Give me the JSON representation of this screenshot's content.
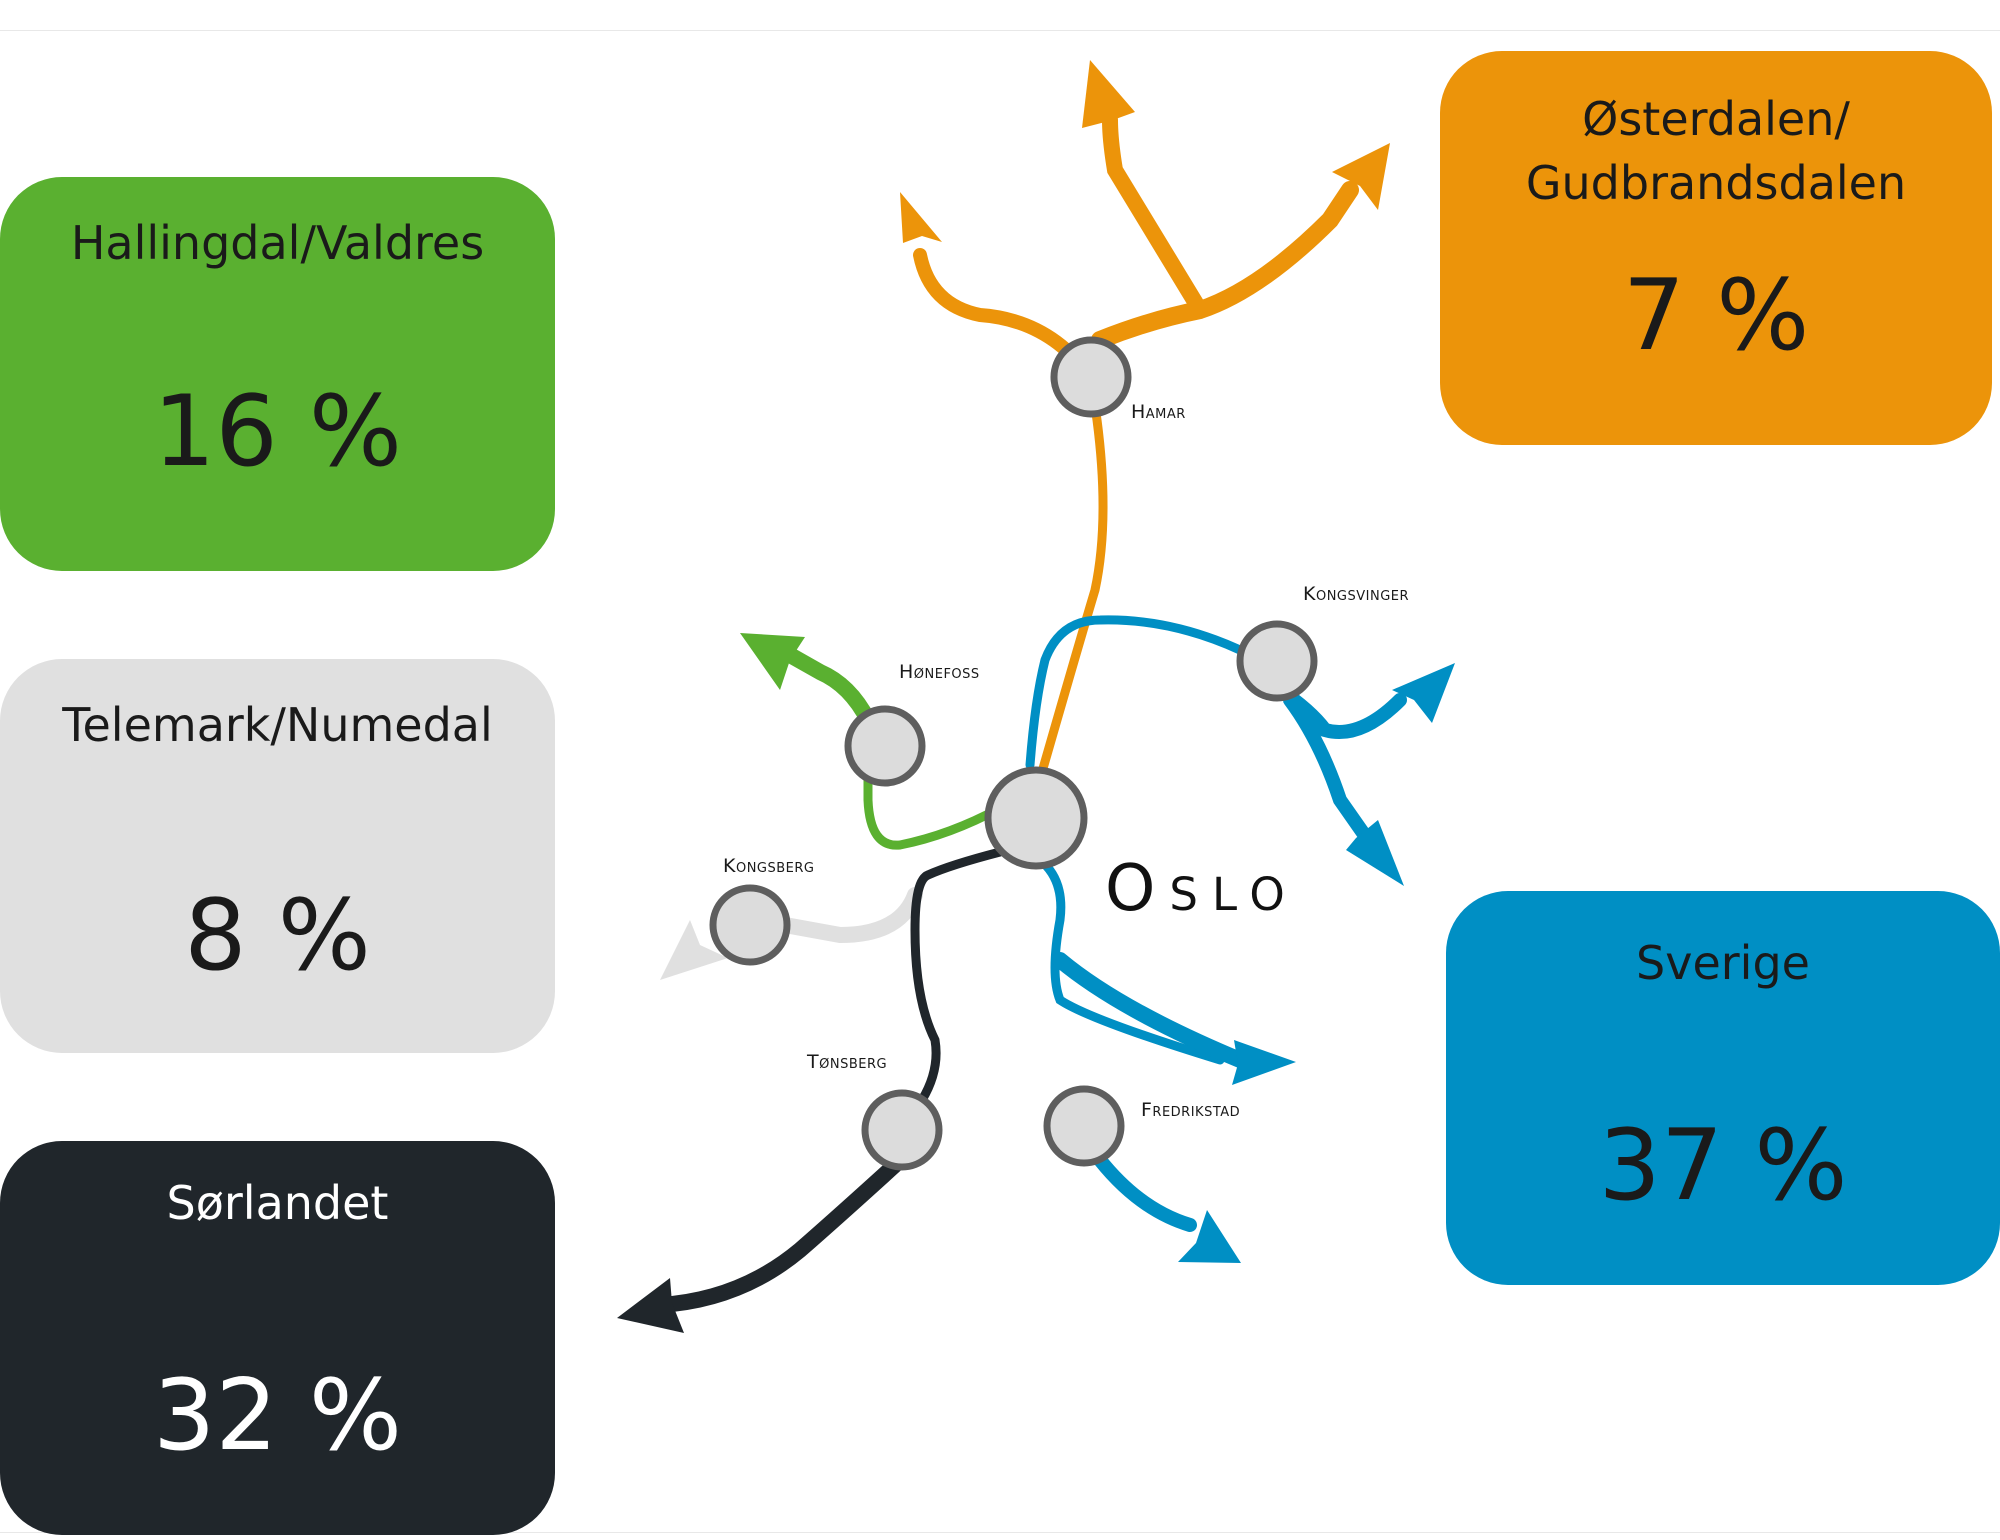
{
  "regions": {
    "hallingdal": {
      "label": "Hallingdal/Valdres",
      "percent": "16 %",
      "color": "#5ab030"
    },
    "telemark": {
      "label": "Telemark/Numedal",
      "percent": "8 %",
      "color": "#e0e0e0"
    },
    "sorlandet": {
      "label": "Sørlandet",
      "percent": "32 %",
      "color": "#20262b"
    },
    "osterdalen": {
      "label": "Østerdalen/ Gudbrandsdalen",
      "percent": "7 %",
      "color": "#ec940a"
    },
    "sverige": {
      "label": "Sverige",
      "percent": "37 %",
      "color": "#008fc4"
    }
  },
  "cities": {
    "oslo": "Oslo",
    "hamar": "Hamar",
    "honefoss": "Hønefoss",
    "kongsvinger": "Kongsvinger",
    "kongsberg": "Kongsberg",
    "tonsberg": "Tønsberg",
    "fredrikstad": "Fredrikstad"
  }
}
